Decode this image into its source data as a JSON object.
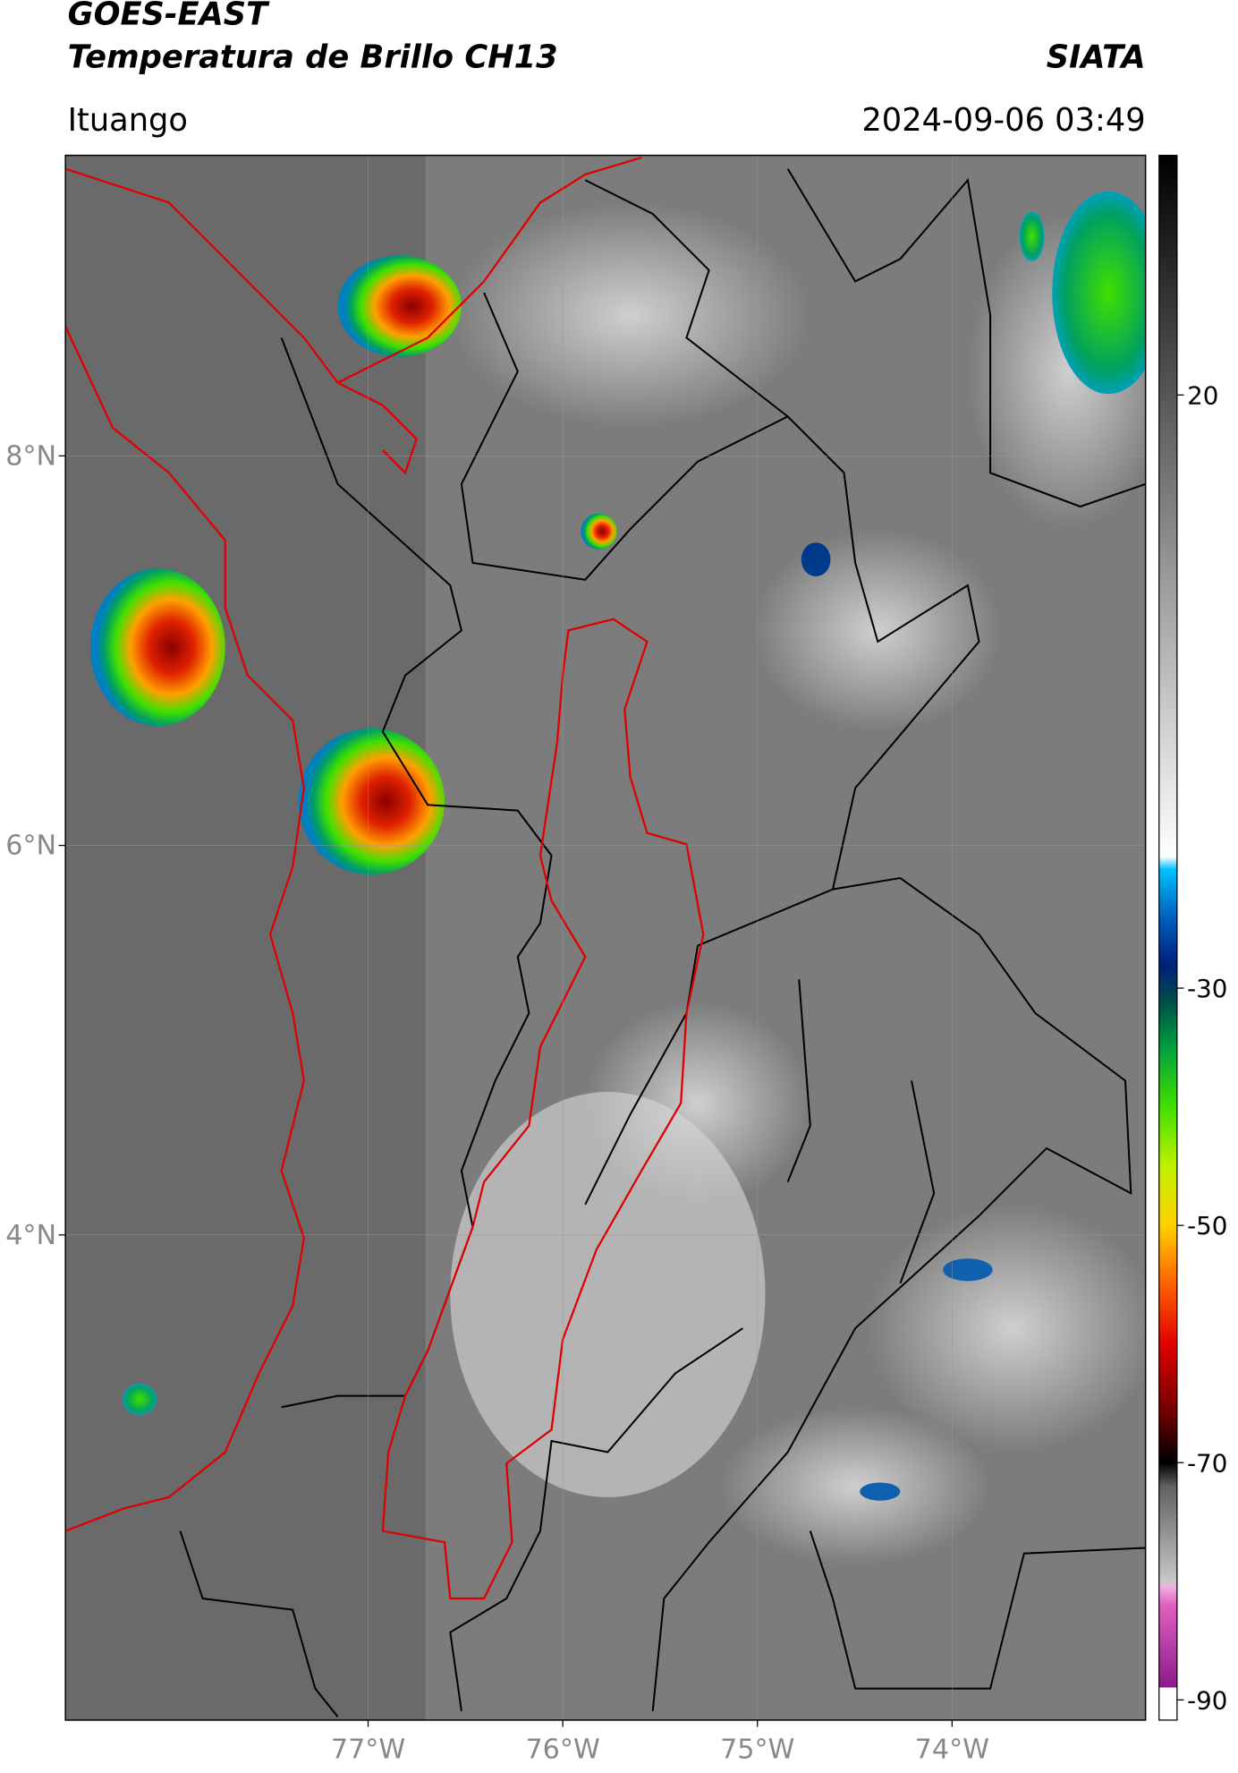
{
  "chart_data": {
    "type": "map",
    "title": "GOES-EAST",
    "subtitle": "Temperatura de Brillo CH13",
    "source": "SIATA",
    "location": "Ituango",
    "datetime": "2024-09-06 03:49",
    "xlim": [
      -78.555,
      -73.006
    ],
    "ylim": [
      1.509,
      9.543
    ],
    "xticks": [
      {
        "value": -77,
        "label": "77°W"
      },
      {
        "value": -76,
        "label": "76°W"
      },
      {
        "value": -75,
        "label": "75°W"
      },
      {
        "value": -74,
        "label": "74°W"
      }
    ],
    "yticks": [
      {
        "value": 8,
        "label": "8°N"
      },
      {
        "value": 6,
        "label": "6°N"
      },
      {
        "value": 4,
        "label": "4°N"
      }
    ],
    "grid": true,
    "colorbar": {
      "lim": [
        -91.7,
        40.2
      ],
      "ticks": [
        20,
        -30,
        -50,
        -70,
        -90
      ],
      "stops": [
        {
          "value": -91.7,
          "color": "#ffffff"
        },
        {
          "value": -89,
          "color": "#ffffff"
        },
        {
          "value": -88.9,
          "color": "#8b1a8b"
        },
        {
          "value": -82,
          "color": "#e060c0"
        },
        {
          "value": -80.5,
          "color": "#f0b0e0"
        },
        {
          "value": -80,
          "color": "#c8c8c8"
        },
        {
          "value": -72,
          "color": "#606060"
        },
        {
          "value": -70,
          "color": "#000000"
        },
        {
          "value": -65,
          "color": "#800000"
        },
        {
          "value": -60,
          "color": "#e00000"
        },
        {
          "value": -55,
          "color": "#ff6000"
        },
        {
          "value": -50,
          "color": "#ffd000"
        },
        {
          "value": -45,
          "color": "#c0f000"
        },
        {
          "value": -40,
          "color": "#40e000"
        },
        {
          "value": -35,
          "color": "#00a040"
        },
        {
          "value": -31,
          "color": "#004a4a"
        },
        {
          "value": -28,
          "color": "#00207a"
        },
        {
          "value": -24,
          "color": "#0060c0"
        },
        {
          "value": -20,
          "color": "#00c0ff"
        },
        {
          "value": -18.9,
          "color": "#ffffff"
        },
        {
          "value": 40.2,
          "color": "#000000"
        }
      ]
    }
  }
}
